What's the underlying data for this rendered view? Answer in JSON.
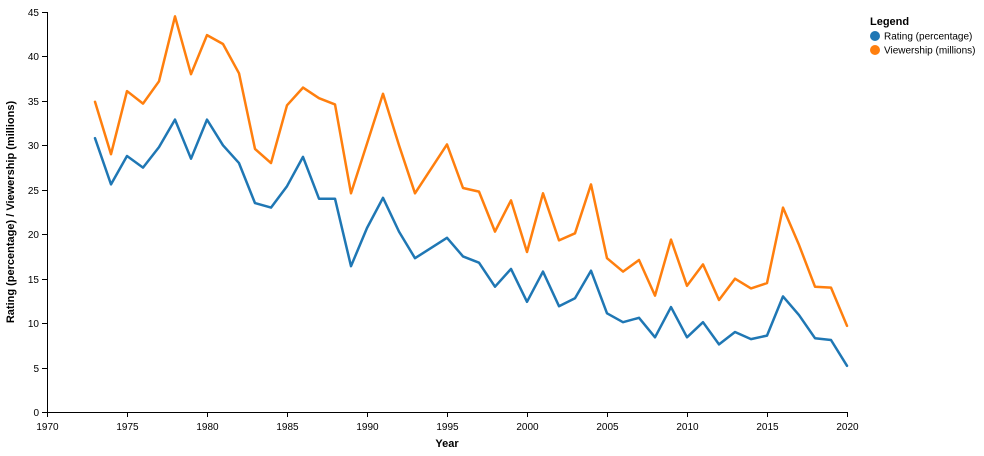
{
  "chart_data": {
    "type": "line",
    "xlabel": "Year",
    "ylabel": "Rating (percentage) / Viewership (millions)",
    "xlim": [
      1970,
      2020
    ],
    "ylim": [
      0,
      45
    ],
    "x_ticks": [
      1970,
      1975,
      1980,
      1985,
      1990,
      1995,
      2000,
      2005,
      2010,
      2015,
      2020
    ],
    "y_ticks": [
      0,
      5,
      10,
      15,
      20,
      25,
      30,
      35,
      40,
      45
    ],
    "grid": false,
    "legend": {
      "title": "Legend",
      "position": "top-right"
    },
    "x": [
      1973,
      1974,
      1975,
      1976,
      1977,
      1978,
      1979,
      1980,
      1981,
      1982,
      1983,
      1984,
      1985,
      1986,
      1987,
      1988,
      1989,
      1990,
      1991,
      1992,
      1993,
      1995,
      1996,
      1997,
      1998,
      1999,
      2000,
      2001,
      2002,
      2003,
      2004,
      2005,
      2006,
      2007,
      2008,
      2009,
      2010,
      2011,
      2012,
      2013,
      2014,
      2015,
      2016,
      2017,
      2018,
      2019,
      2020
    ],
    "series": [
      {
        "name": "Rating (percentage)",
        "color": "#1f77b4",
        "values": [
          30.8,
          25.6,
          28.8,
          27.5,
          29.8,
          32.9,
          28.5,
          32.9,
          30.0,
          28.0,
          23.5,
          23.0,
          25.4,
          28.7,
          24.0,
          24.0,
          16.4,
          20.7,
          24.1,
          20.3,
          17.3,
          19.6,
          17.5,
          16.8,
          14.1,
          16.1,
          12.4,
          15.8,
          11.9,
          12.8,
          15.9,
          11.1,
          10.1,
          10.6,
          8.4,
          11.8,
          8.4,
          10.1,
          7.6,
          9.0,
          8.2,
          8.6,
          13.0,
          10.9,
          8.3,
          8.1,
          5.2
        ]
      },
      {
        "name": "Viewership (millions)",
        "color": "#ff7f0e",
        "values": [
          34.9,
          29.0,
          36.1,
          34.7,
          37.2,
          44.5,
          38.0,
          42.4,
          41.4,
          38.1,
          29.6,
          28.0,
          34.5,
          36.5,
          35.3,
          34.6,
          24.6,
          30.2,
          35.8,
          30.0,
          24.6,
          30.1,
          25.2,
          24.8,
          20.3,
          23.8,
          18.0,
          24.6,
          19.3,
          20.1,
          25.6,
          17.3,
          15.8,
          17.1,
          13.1,
          19.4,
          14.2,
          16.6,
          12.6,
          15.0,
          13.9,
          14.5,
          23.0,
          18.8,
          14.1,
          14.0,
          9.7
        ]
      }
    ]
  }
}
